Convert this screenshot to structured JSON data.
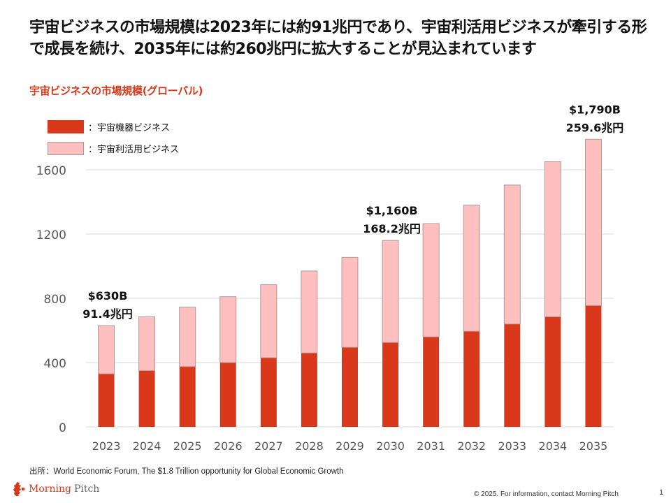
{
  "headline": "宇宙ビジネスの市場規模は2023年には約91兆円であり、宇宙利活用ビジネスが牽引する形で成長を続け、2035年には約260兆円に拡大することが見込まれています",
  "source": "出所：World Economic Forum, The $1.8 Trillion opportunity for Global Economic Growth",
  "footer": {
    "logo_word1": "Morning",
    "logo_word2": "Pitch",
    "logo_icon": "morning-pitch-logo-icon",
    "copyright": "© 2025. For information, contact Morning Pitch",
    "page_number": "1"
  },
  "colors": {
    "accent": "#D9391A",
    "equipment": "#D9391A",
    "utilization": "#FFBFBF",
    "utilization_border": "#B09A9A",
    "grid": "#D9D9D9",
    "tick_text": "#595959"
  },
  "chart_data": {
    "type": "bar",
    "stacked": true,
    "title": "宇宙ビジネスの市場規模(グローバル)",
    "xlabel": "",
    "ylabel": "",
    "ylim": [
      0,
      1600
    ],
    "yticks": [
      0,
      400,
      800,
      1200,
      1600
    ],
    "grid": true,
    "legend_position": "top-left",
    "categories": [
      "2023",
      "2024",
      "2025",
      "2026",
      "2027",
      "2028",
      "2029",
      "2030",
      "2031",
      "2032",
      "2033",
      "2034",
      "2035"
    ],
    "series": [
      {
        "name": "：宇宙機器ビジネス",
        "values": [
          330,
          350,
          375,
          400,
          430,
          460,
          495,
          525,
          560,
          595,
          640,
          685,
          755
        ]
      },
      {
        "name": "：宇宙利活用ビジネス",
        "values": [
          300,
          335,
          370,
          410,
          455,
          510,
          560,
          635,
          705,
          785,
          865,
          965,
          1035
        ]
      }
    ],
    "totals": [
      630,
      685,
      745,
      810,
      885,
      970,
      1055,
      1160,
      1265,
      1380,
      1505,
      1650,
      1790
    ],
    "annotations": [
      {
        "category": "2023",
        "line1": "$630B",
        "line2": "91.4兆円"
      },
      {
        "category": "2030",
        "line1": "$1,160B",
        "line2": "168.2兆円"
      },
      {
        "category": "2035",
        "line1": "$1,790B",
        "line2": "259.6兆円"
      }
    ]
  }
}
